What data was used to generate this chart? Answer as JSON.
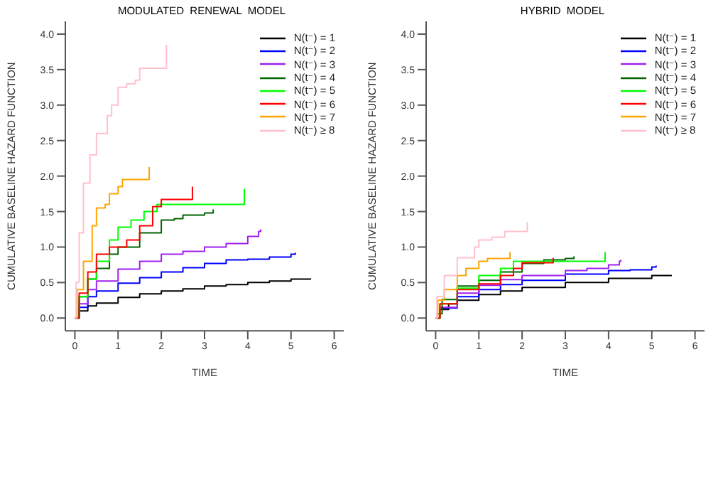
{
  "chart_data": [
    {
      "type": "step",
      "title": "MODULATED  RENEWAL  MODEL",
      "xlabel": "TIME",
      "ylabel": "CUMULATIVE  BASELINE  HAZARD  FUNCTION",
      "xlim": [
        -0.22,
        6.22
      ],
      "ylim": [
        -0.18,
        4.18
      ],
      "xticks": [
        0,
        1,
        2,
        3,
        4,
        5,
        6
      ],
      "yticks": [
        {
          "value": 0,
          "label": "0.0"
        },
        0.5,
        {
          "value": 1,
          "label": "1.0"
        },
        1.5,
        {
          "value": 2,
          "label": "2.0"
        },
        2.5,
        {
          "value": 3,
          "label": "3.0"
        },
        3.5,
        {
          "value": 4,
          "label": "4.0"
        }
      ],
      "legend": "top right",
      "grid": false,
      "series": [
        {
          "name": "N(t⁻) = 1",
          "color": "#000000",
          "x": [
            0,
            0.1,
            0.3,
            0.5,
            1,
            1.5,
            2,
            2.5,
            3,
            3.5,
            4,
            4.5,
            5,
            5.45
          ],
          "values": [
            0,
            0.1,
            0.17,
            0.21,
            0.29,
            0.34,
            0.38,
            0.41,
            0.45,
            0.47,
            0.5,
            0.52,
            0.55,
            0.56
          ]
        },
        {
          "name": "N(t⁻) = 2",
          "color": "#0000ff",
          "x": [
            0,
            0.1,
            0.3,
            0.5,
            1,
            1.5,
            2,
            2.5,
            3,
            3.5,
            4,
            4.5,
            5,
            5.1
          ],
          "values": [
            0,
            0.15,
            0.3,
            0.38,
            0.49,
            0.57,
            0.65,
            0.71,
            0.77,
            0.82,
            0.83,
            0.86,
            0.9,
            0.92
          ]
        },
        {
          "name": "N(t⁻) = 3",
          "color": "#a020f0",
          "x": [
            0,
            0.1,
            0.3,
            0.5,
            1,
            1.5,
            2,
            2.5,
            3,
            3.5,
            4,
            4.25,
            4.3
          ],
          "values": [
            0,
            0.2,
            0.4,
            0.52,
            0.69,
            0.8,
            0.9,
            0.94,
            1.0,
            1.05,
            1.15,
            1.22,
            1.25
          ]
        },
        {
          "name": "N(t⁻) = 4",
          "color": "#006400",
          "x": [
            0,
            0.1,
            0.3,
            0.5,
            0.8,
            1,
            1.5,
            2,
            2.3,
            2.5,
            3,
            3.2
          ],
          "values": [
            0,
            0.3,
            0.55,
            0.7,
            0.9,
            1.0,
            1.2,
            1.38,
            1.4,
            1.45,
            1.48,
            1.53
          ]
        },
        {
          "name": "N(t⁻) = 5",
          "color": "#00ff00",
          "x": [
            0,
            0.1,
            0.3,
            0.5,
            0.8,
            1,
            1.3,
            1.6,
            1.9,
            3.9,
            3.92
          ],
          "values": [
            0,
            0.3,
            0.55,
            0.8,
            1.1,
            1.28,
            1.38,
            1.5,
            1.6,
            1.6,
            1.82
          ]
        },
        {
          "name": "N(t⁻) = 6",
          "color": "#ff0000",
          "x": [
            0,
            0.1,
            0.3,
            0.5,
            0.8,
            1.2,
            1.5,
            1.8,
            2,
            2.7,
            2.72
          ],
          "values": [
            0,
            0.35,
            0.65,
            0.9,
            1.0,
            1.1,
            1.3,
            1.57,
            1.67,
            1.67,
            1.85
          ]
        },
        {
          "name": "N(t⁻) = 7",
          "color": "#ffa500",
          "x": [
            0,
            0.05,
            0.2,
            0.4,
            0.5,
            0.7,
            0.8,
            1.0,
            1.1,
            1.7,
            1.72
          ],
          "values": [
            0,
            0.4,
            0.8,
            1.3,
            1.55,
            1.6,
            1.75,
            1.85,
            1.95,
            1.95,
            2.13
          ]
        },
        {
          "name": "N(t⁻) ≥ 8",
          "color": "#ffc0cb",
          "x": [
            0,
            0.03,
            0.1,
            0.2,
            0.35,
            0.5,
            0.75,
            0.85,
            1.0,
            1.2,
            1.4,
            1.5,
            2.1,
            2.12
          ],
          "values": [
            0,
            0.5,
            1.2,
            1.9,
            2.3,
            2.6,
            2.85,
            3.0,
            3.25,
            3.3,
            3.35,
            3.52,
            3.52,
            3.85
          ]
        }
      ]
    },
    {
      "type": "step",
      "title": "HYBRID  MODEL",
      "xlabel": "TIME",
      "ylabel": "CUMULATIVE  BASELINE  HAZARD  FUNCTION",
      "xlim": [
        -0.22,
        6.22
      ],
      "ylim": [
        -0.18,
        4.18
      ],
      "xticks": [
        0,
        1,
        2,
        3,
        4,
        5,
        6
      ],
      "yticks": [
        {
          "value": 0,
          "label": "0.0"
        },
        0.5,
        {
          "value": 1,
          "label": "1.0"
        },
        1.5,
        {
          "value": 2,
          "label": "2.0"
        },
        2.5,
        {
          "value": 3,
          "label": "3.0"
        },
        3.5,
        {
          "value": 4,
          "label": "4.0"
        }
      ],
      "legend": "top right",
      "grid": false,
      "series": [
        {
          "name": "N(t⁻) = 1",
          "color": "#000000",
          "x": [
            0,
            0.1,
            0.3,
            0.5,
            1,
            1.5,
            2,
            3,
            4,
            5,
            5.45
          ],
          "values": [
            0,
            0.12,
            0.2,
            0.25,
            0.33,
            0.38,
            0.43,
            0.5,
            0.56,
            0.6,
            0.61
          ]
        },
        {
          "name": "N(t⁻) = 2",
          "color": "#0000ff",
          "x": [
            0,
            0.1,
            0.5,
            1,
            1.5,
            2,
            3,
            4,
            4.5,
            5,
            5.1
          ],
          "values": [
            0,
            0.14,
            0.3,
            0.4,
            0.47,
            0.53,
            0.62,
            0.67,
            0.68,
            0.72,
            0.74
          ]
        },
        {
          "name": "N(t⁻) = 3",
          "color": "#a020f0",
          "x": [
            0,
            0.1,
            0.5,
            1,
            1.5,
            2,
            3,
            3.5,
            4,
            4.25,
            4.28
          ],
          "values": [
            0,
            0.15,
            0.35,
            0.46,
            0.54,
            0.6,
            0.67,
            0.7,
            0.75,
            0.8,
            0.82
          ]
        },
        {
          "name": "N(t⁻) = 4",
          "color": "#006400",
          "x": [
            0.02,
            0.15,
            0.5,
            1,
            1.5,
            2,
            2.5,
            3,
            3.2
          ],
          "values": [
            0.06,
            0.26,
            0.45,
            0.53,
            0.65,
            0.77,
            0.82,
            0.84,
            0.87
          ]
        },
        {
          "name": "N(t⁻) = 5",
          "color": "#00ff00",
          "x": [
            0,
            0.1,
            0.5,
            1,
            1.5,
            1.8,
            3.9,
            3.92
          ],
          "values": [
            0,
            0.2,
            0.42,
            0.6,
            0.7,
            0.8,
            0.8,
            0.93
          ]
        },
        {
          "name": "N(t⁻) = 6",
          "color": "#ff0000",
          "x": [
            0,
            0.1,
            0.5,
            1,
            1.5,
            1.8,
            2,
            2.7,
            2.72
          ],
          "values": [
            0,
            0.2,
            0.4,
            0.48,
            0.6,
            0.7,
            0.78,
            0.78,
            0.85
          ]
        },
        {
          "name": "N(t⁻) = 7",
          "color": "#ffa500",
          "x": [
            0,
            0.05,
            0.2,
            0.5,
            0.7,
            1,
            1.2,
            1.7,
            1.72
          ],
          "values": [
            0,
            0.25,
            0.4,
            0.6,
            0.7,
            0.8,
            0.84,
            0.84,
            0.93
          ]
        },
        {
          "name": "N(t⁻) ≥ 8",
          "color": "#ffc0cb",
          "x": [
            0,
            0.03,
            0.2,
            0.5,
            0.9,
            1,
            1.3,
            1.6,
            2.1,
            2.12
          ],
          "values": [
            0,
            0.3,
            0.6,
            0.85,
            1.0,
            1.1,
            1.14,
            1.22,
            1.22,
            1.35
          ]
        }
      ]
    }
  ]
}
